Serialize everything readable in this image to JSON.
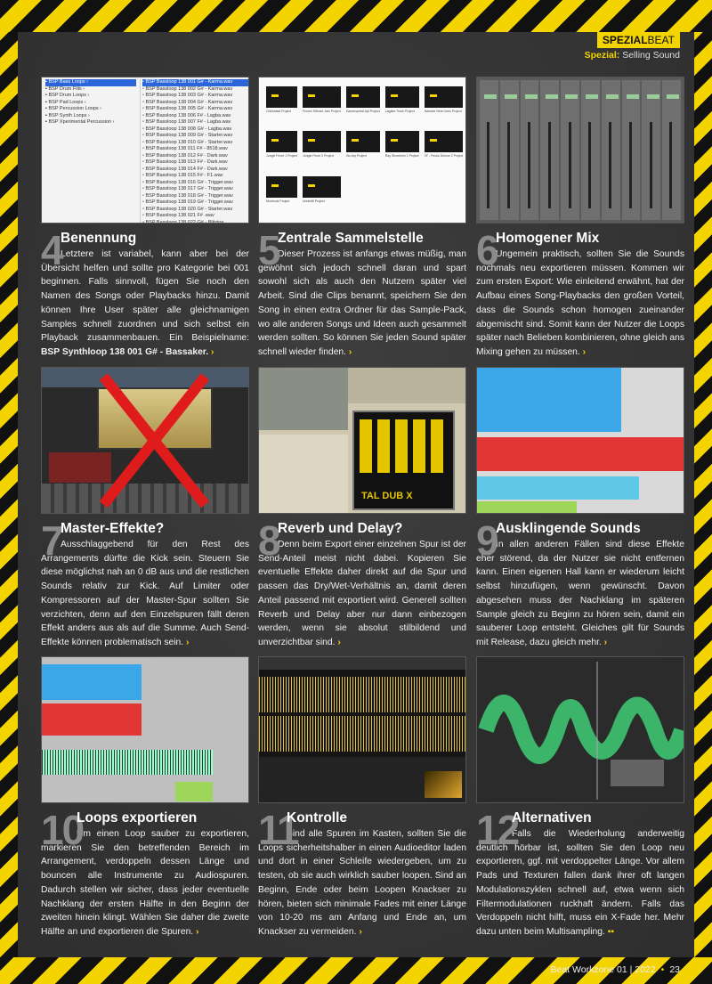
{
  "header": {
    "kicker_a": "SPEZIAL",
    "kicker_b": "BEAT",
    "sub_label": "Spezial:",
    "sub_text": "Selling Sound"
  },
  "footer": {
    "magazine": "Beat Workzone 01 | 2022",
    "page": "23"
  },
  "sections": [
    {
      "num": "4",
      "title": "Benennung",
      "text": "Letztere ist variabel, kann aber bei der Übersicht helfen und sollte pro Kategorie bei 001 beginnen. Falls sinnvoll, fügen Sie noch den Namen des Songs oder Playbacks hinzu. Damit können Ihre User später alle gleichnamigen Samples schnell zuordnen und sich selbst ein Playback zusammenbauen. Ein Beispielname: ",
      "bold": "BSP Synthloop 138 001 G# - Bassaker."
    },
    {
      "num": "5",
      "title": "Zentrale Sammelstelle",
      "text": "Dieser Prozess ist anfangs etwas müßig, man gewöhnt sich jedoch schnell daran und spart sowohl sich als auch den Nutzern später viel Arbeit. Sind die Clips benannt, speichern Sie den Song in einen extra Ordner für das Sample-Pack, wo alle anderen Songs und Ideen auch gesammelt werden sollten. So können Sie jeden Sound später schnell wieder finden.",
      "bold": ""
    },
    {
      "num": "6",
      "title": "Homogener Mix",
      "text": "Ungemein praktisch, sollten Sie die Sounds nochmals neu exportieren müssen. Kommen wir zum ersten Export: Wie einleitend erwähnt, hat der Aufbau eines Song-Playbacks den großen Vorteil, dass die Sounds schon homogen zueinander abgemischt sind. Somit kann der Nutzer die Loops später nach Belieben kombinieren, ohne gleich ans Mixing gehen zu müssen.",
      "bold": ""
    },
    {
      "num": "7",
      "title": "Master-Effekte?",
      "text": "Ausschlaggebend für den Rest des Arrangements dürfte die Kick sein. Steuern Sie diese möglichst nah an 0 dB aus und die restlichen Sounds relativ zur Kick. Auf Limiter oder Kompressoren auf der Master-Spur sollten Sie verzichten, denn auf den Einzelspuren fällt deren Effekt anders aus als auf die Summe. Auch Send-Effekte können problematisch sein.",
      "bold": ""
    },
    {
      "num": "8",
      "title": "Reverb und Delay?",
      "text": "Denn beim Export einer einzelnen Spur ist der Send-Anteil meist nicht dabei. Kopieren Sie eventuelle Effekte daher direkt auf die Spur und passen das Dry/Wet-Verhältnis an, damit deren Anteil passend mit exportiert wird. Generell sollten Reverb und Delay aber nur dann einbezogen werden, wenn sie absolut stilbildend und unverzichtbar sind.",
      "bold": ""
    },
    {
      "num": "9",
      "title": "Ausklingende Sounds",
      "text": "In allen anderen Fällen sind diese Effekte eher störend, da der Nutzer sie nicht entfernen kann. Einen eigenen Hall kann er wiederum leicht selbst hinzufügen, wenn gewünscht. Davon abgesehen muss der Nachklang im späteren Sample gleich zu Beginn zu hören sein, damit ein sauberer Loop entsteht. Gleiches gilt für Sounds mit Release, dazu gleich mehr.",
      "bold": ""
    },
    {
      "num": "10",
      "title": "Loops exportieren",
      "text": "Um einen Loop sauber zu exportieren, markieren Sie den betreffenden Bereich im Arrangement, verdoppeln dessen Länge und bouncen alle Instrumente zu Audiospuren. Dadurch stellen wir sicher, dass jeder eventuelle Nachklang der ersten Hälfte in den Beginn der zweiten hinein klingt. Wählen Sie daher die zweite Hälfte an und exportieren die Spuren.",
      "bold": ""
    },
    {
      "num": "11",
      "title": "Kontrolle",
      "text": "Sind alle Spuren im Kasten, sollten Sie die Loops sicherheitshalber in einen Audioeditor laden und dort in einer Schleife wiedergeben, um zu testen, ob sie auch wirklich sauber loopen. Sind an Beginn, Ende oder beim Loopen Knackser zu hören, bieten sich minimale Fades mit einer Länge von 10-20 ms am Anfang und Ende an, um Knackser zu vermeiden.",
      "bold": ""
    },
    {
      "num": "12",
      "title": "Alternativen",
      "text": "Falls die Wiederholung anderweitig deutlich hörbar ist, sollten Sie den Loop neu exportieren, ggf. mit verdoppelter Länge. Vor allem Pads und Texturen fallen dank ihrer oft langen Modulationszyklen schnell auf, etwa wenn sich Filtermodulationen ruckhaft ändern. Falls das Verdoppeln nicht hilft, muss ein X-Fade her. Mehr dazu unten beim Multisampling.",
      "bold": ""
    }
  ],
  "shot1": {
    "folders": [
      "BSP Bass Loops",
      "BSP Drum Fills",
      "BSP Drum Loops",
      "BSP Pad Loops",
      "BSP Percussion Loops",
      "BSP Synth Loops",
      "BSP Xperimental Percussion"
    ],
    "files": [
      "BSP Bassloop 138 001 G# - Karma.wav",
      "BSP Bassloop 138 002 G# - Karma.wav",
      "BSP Bassloop 138 003 G# - Karma.wav",
      "BSP Bassloop 138 004 G# - Karma.wav",
      "BSP Bassloop 138 005 G# - Karma.wav",
      "BSP Bassloop 138 006 F# - Lagba.wav",
      "BSP Bassloop 138 007 F# - Lagba.wav",
      "BSP Bassloop 138 008 G# - Lagba.wav",
      "BSP Bassloop 138 009 G# - Starter.wav",
      "BSP Bassloop 138 010 G# - Starter.wav",
      "BSP Bassloop 138 011 F# - 8518.wav",
      "BSP Bassloop 138 012 F# - Dark.wav",
      "BSP Bassloop 138 013 F# - Dark.wav",
      "BSP Bassloop 138 014 F# - Dark.wav",
      "BSP Bassloop 138 015 F# - F1.wav",
      "BSP Bassloop 138 016 G# - Trigger.wav",
      "BSP Bassloop 138 017 G# - Trigger.wav",
      "BSP Bassloop 138 018 G# - Trigger.wav",
      "BSP Bassloop 138 019 G# - Trigger.wav",
      "BSP Bassloop 138 020 G# - Starter.wav",
      "BSP Bassloop 138 021 F# .wav",
      "BSP Bassloop 138 022 G# - Blitzine"
    ]
  },
  "shot2": {
    "folders": [
      "Chilloblast Project",
      "Frozen Silence Jam Project",
      "Gammopetal Apt Project",
      "Lagabe Track Project",
      "Massive Nine Lines Project",
      "Jungle Fever 1 Project",
      "Jungle Fever 2 Project",
      "Xtc Arp Project",
      "Ray Shoehmin 1 Project",
      "SF - Fesdo Deluxe 2 Project",
      "Monbook Project",
      "Undertill Project"
    ]
  },
  "shot8": {
    "plugin_label": "TAL DUB X"
  }
}
